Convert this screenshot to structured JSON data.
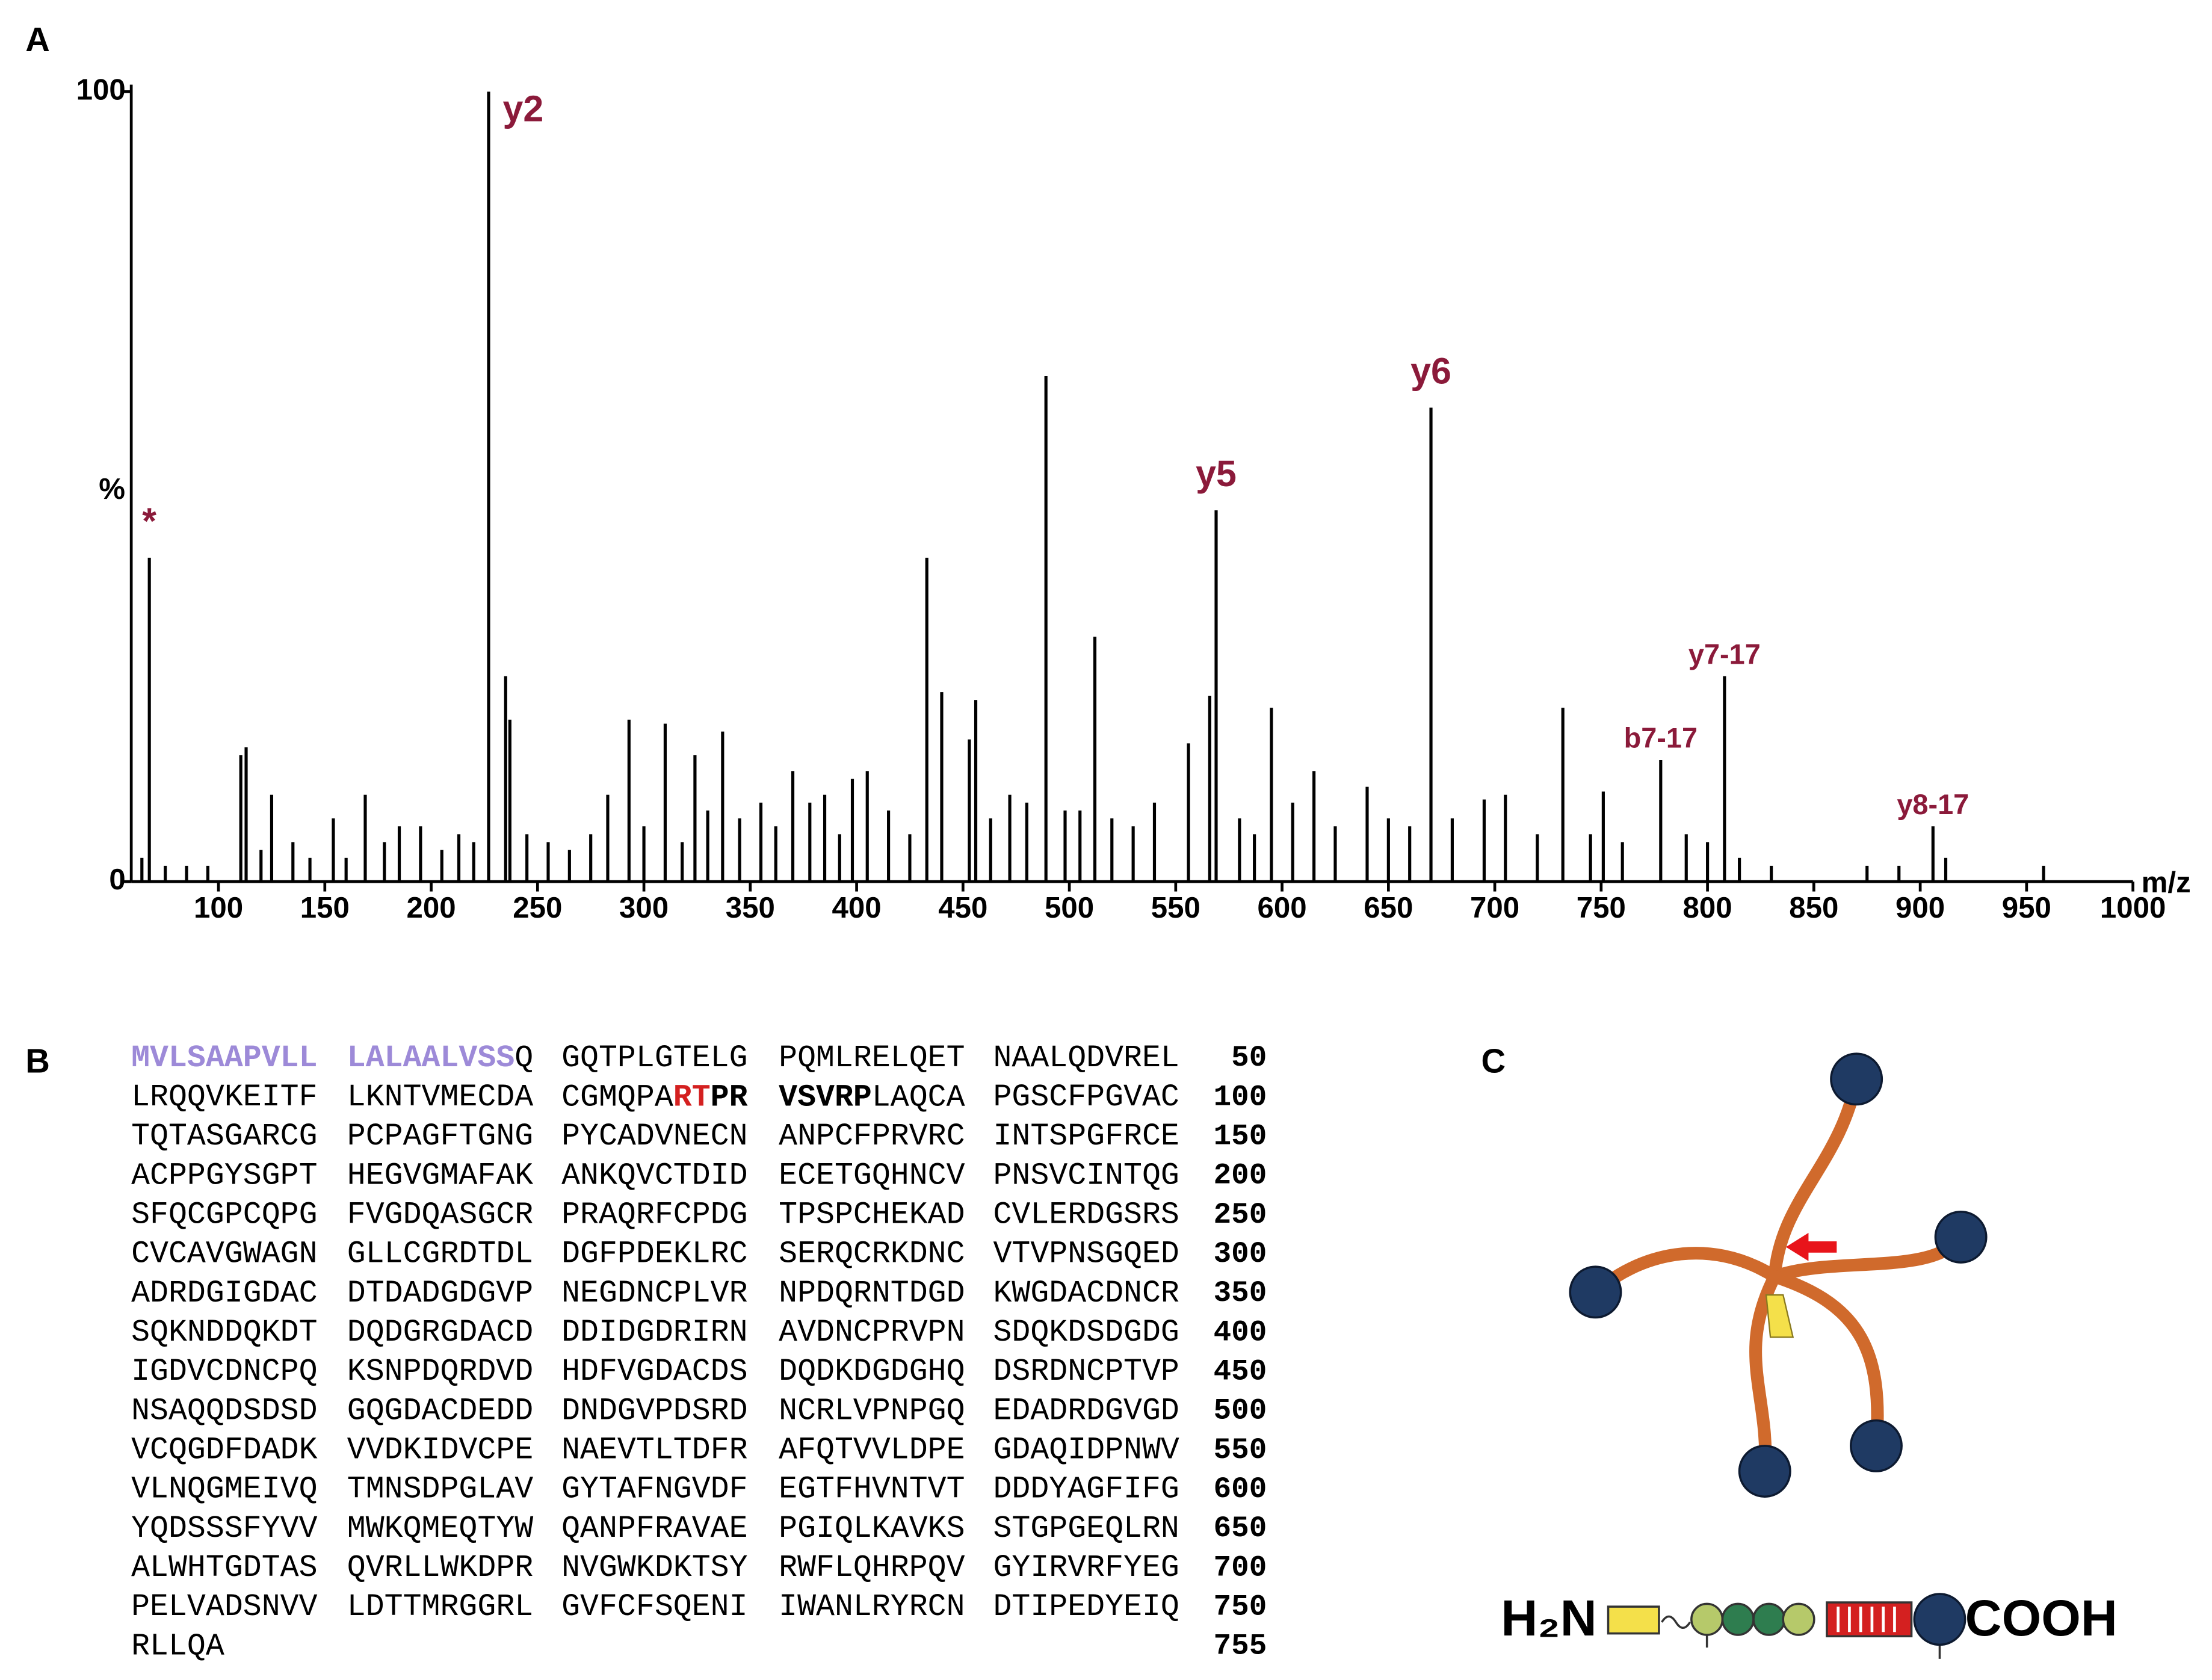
{
  "panel_labels": [
    "A",
    "B",
    "C"
  ],
  "chart_data": {
    "type": "stem",
    "ylabel": "%",
    "xlabel": "m/z",
    "color": "#000000",
    "annotation_color": "#8b1a3a",
    "x": [
      64,
      67.5,
      75,
      85,
      95,
      110.5,
      113,
      120,
      125,
      135,
      143,
      154,
      160,
      169,
      178,
      185,
      195,
      205,
      213,
      220,
      227,
      235,
      237,
      245,
      255,
      265,
      275,
      283,
      293,
      300,
      310,
      318,
      324,
      330,
      337,
      345,
      355,
      362,
      370,
      378,
      385,
      392,
      398,
      405,
      415,
      425,
      433,
      440,
      453,
      456,
      463,
      472,
      480,
      489,
      498,
      505,
      512,
      520,
      530,
      540,
      556,
      566,
      569,
      580,
      587,
      595,
      605,
      615,
      625,
      640,
      650,
      660,
      670,
      680,
      695,
      705,
      720,
      732,
      745,
      751,
      760,
      778,
      790,
      800,
      808,
      815,
      830,
      875,
      890,
      906,
      912,
      958
    ],
    "values": [
      3,
      41,
      2,
      2,
      2,
      16,
      17,
      4,
      11,
      5,
      3,
      8,
      3,
      11,
      5,
      7,
      7,
      4,
      6,
      5,
      100,
      26,
      20.5,
      6,
      5,
      4,
      6,
      11,
      20.5,
      7,
      20,
      5,
      16,
      9,
      19,
      8,
      10,
      7,
      14,
      10,
      11,
      6,
      13,
      14,
      9,
      6,
      41,
      24,
      18,
      23,
      8,
      11,
      10,
      64,
      9,
      9,
      31,
      8,
      7,
      10,
      17.5,
      23.5,
      47,
      8,
      6,
      22,
      10,
      14,
      7,
      12,
      8,
      7,
      60,
      8,
      10.4,
      11,
      6,
      22,
      6,
      11.4,
      5,
      15.4,
      6,
      5,
      26,
      3,
      2,
      2,
      2,
      7,
      3,
      2
    ],
    "annotations": [
      {
        "text": "*",
        "x": 67.5
      },
      {
        "text": "y2",
        "x": 227
      },
      {
        "text": "y5",
        "x": 569
      },
      {
        "text": "y6",
        "x": 670
      },
      {
        "text": "b7-17",
        "x": 778
      },
      {
        "text": "y7-17",
        "x": 808
      },
      {
        "text": "y8-17",
        "x": 906
      }
    ],
    "xlim": [
      59,
      1000
    ],
    "ylim": [
      0,
      100
    ],
    "xticks": [
      100,
      150,
      200,
      250,
      300,
      350,
      400,
      450,
      500,
      550,
      600,
      650,
      700,
      750,
      800,
      850,
      900,
      950,
      1000
    ],
    "yticks": [
      0,
      100
    ]
  },
  "sequence": {
    "rows": [
      {
        "groups": [
          [
            {
              "text": "MVLSAAPVLL",
              "color": "#9d8ad8",
              "bold": true
            }
          ],
          [
            {
              "text": "LALAALVSS",
              "color": "#9d8ad8",
              "bold": true
            },
            {
              "text": "Q"
            }
          ],
          "GQTPLGTELG",
          "PQMLRELQET",
          "NAALQDVREL"
        ],
        "number": 50
      },
      {
        "groups": [
          "LRQQVKEITF",
          "LKNTVMECDA",
          [
            {
              "text": "CGMQPA"
            },
            {
              "text": "RT",
              "color": "#d42020",
              "bold": true
            },
            {
              "text": "PR",
              "bold": true
            }
          ],
          [
            {
              "text": "VSVRP",
              "bold": true
            },
            {
              "text": "LAQCA"
            }
          ],
          "PGSCFPGVAC"
        ],
        "number": 100
      },
      {
        "groups": [
          "TQTASGARCG",
          "PCPAGFTGNG",
          "PYCADVNECN",
          "ANPCFPRVRC",
          "INTSPGFRCE"
        ],
        "number": 150
      },
      {
        "groups": [
          "ACPPGYSGPT",
          "HEGVGMAFAK",
          "ANKQVCTDID",
          "ECETGQHNCV",
          "PNSVCINTQG"
        ],
        "number": 200
      },
      {
        "groups": [
          "SFQCGPCQPG",
          "FVGDQASGCR",
          "PRAQRFCPDG",
          "TPSPCHEKAD",
          "CVLERDGSRS"
        ],
        "number": 250
      },
      {
        "groups": [
          "CVCAVGWAGN",
          "GLLCGRDTDL",
          "DGFPDEKLRC",
          "SERQCRKDNC",
          "VTVPNSGQED"
        ],
        "number": 300
      },
      {
        "groups": [
          "ADRDGIGDAC",
          "DTDADGDGVP",
          "NEGDNCPLVR",
          "NPDQRNTDGD",
          "KWGDACDNCR"
        ],
        "number": 350
      },
      {
        "groups": [
          "SQKNDDQKDT",
          "DQDGRGDACD",
          "DDIDGDRIRN",
          "AVDNCPRVPN",
          "SDQKDSDGDG"
        ],
        "number": 400
      },
      {
        "groups": [
          "IGDVCDNCPQ",
          "KSNPDQRDVD",
          "HDFVGDACDS",
          "DQDKDGDGHQ",
          "DSRDNCPTVP"
        ],
        "number": 450
      },
      {
        "groups": [
          "NSAQQDSDSD",
          "GQGDACDEDD",
          "DNDGVPDSRD",
          "NCRLVPNPGQ",
          "EDADRDGVGD"
        ],
        "number": 500
      },
      {
        "groups": [
          "VCQGDFDADK",
          "VVDKIDVCPE",
          "NAEVTLTDFR",
          "AFQTVVLDPE",
          "GDAQIDPNWV"
        ],
        "number": 550
      },
      {
        "groups": [
          "VLNQGMEIVQ",
          "TMNSDPGLAV",
          "GYTAFNGVDF",
          "EGTFHVNTVT",
          "DDDYAGFIFG"
        ],
        "number": 600
      },
      {
        "groups": [
          "YQDSSSFYVV",
          "MWKQMEQTYW",
          "QANPFRAVAE",
          "PGIQLKAVKS",
          "STGPGEQLRN"
        ],
        "number": 650
      },
      {
        "groups": [
          "ALWHTGDTAS",
          "QVRLLWKDPR",
          "NVGWKDKTSY",
          "RWFLQHRPQV",
          "GYIRVRFYEG"
        ],
        "number": 700
      },
      {
        "groups": [
          "PELVADSNVV",
          "LDTTMRGGRL",
          "GVFCFSQENI",
          "IWANLRYRCN",
          "DTIPEDYEIQ"
        ],
        "number": 750
      },
      {
        "groups": [
          "RLLQA"
        ],
        "number": 755
      }
    ]
  },
  "domain_diagram": {
    "left_terminus": "H₂N",
    "right_terminus": "COOH"
  }
}
